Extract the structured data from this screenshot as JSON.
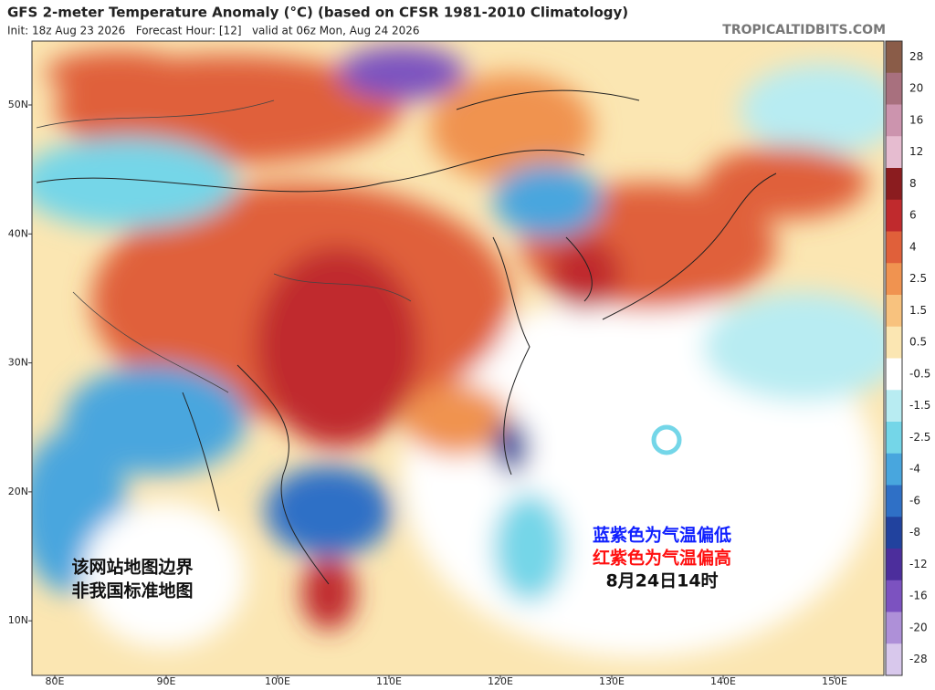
{
  "header": {
    "title": "GFS 2-meter Temperature Anomaly (°C) (based on CFSR 1981-2010 Climatology)",
    "subtitle": "Init: 18z Aug 23 2026   Forecast Hour: [12]   valid at 06z Mon, Aug 24 2026",
    "source": "TROPICALTIDBITS.COM"
  },
  "map": {
    "lat_labels": [
      "50N",
      "40N",
      "30N",
      "20N",
      "10N"
    ],
    "lon_labels": [
      "80E",
      "90E",
      "100E",
      "110E",
      "120E",
      "130E",
      "140E",
      "150E"
    ]
  },
  "colorbar": {
    "labels": [
      "28",
      "20",
      "16",
      "12",
      "8",
      "6",
      "4",
      "2.5",
      "1.5",
      "0.5",
      "-0.5",
      "-1.5",
      "-2.5",
      "-4",
      "-6",
      "-8",
      "-12",
      "-16",
      "-20",
      "-28"
    ],
    "colors": [
      "#8a5c48",
      "#a8707e",
      "#cc94ae",
      "#e6bcd0",
      "#8b1c1f",
      "#c02a2d",
      "#e0603a",
      "#f09350",
      "#f8c27e",
      "#fbe6b2",
      "#ffffff",
      "#b8ecf2",
      "#74d6e8",
      "#48a6de",
      "#2f70c6",
      "#21429e",
      "#4c2e9c",
      "#7c52c0",
      "#ae90d8",
      "#d8c8ec"
    ]
  },
  "annotations": {
    "legend_blue": "蓝紫色为气温偏低",
    "legend_red": "红紫色为气温偏高",
    "time": "8月24日14时",
    "disclaimer": [
      "该网站地图边界",
      "非我国标准地图"
    ]
  }
}
